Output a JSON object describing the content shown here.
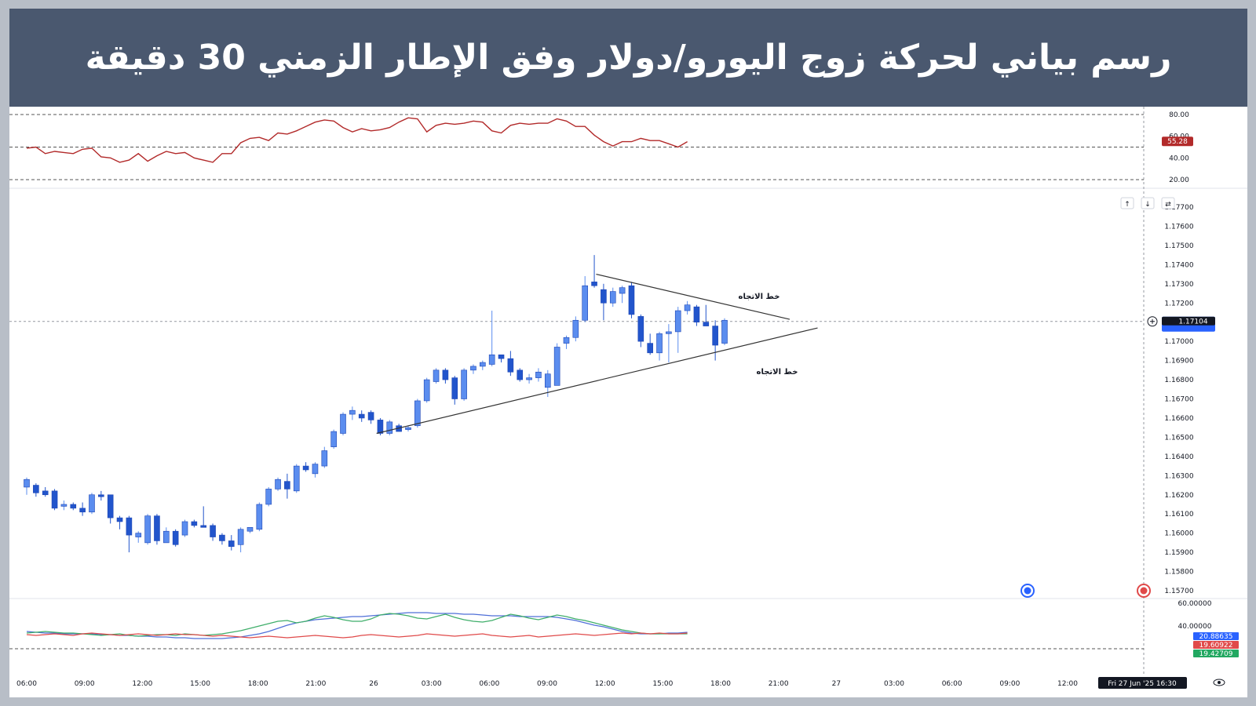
{
  "header": {
    "title": "رسم بياني لحركة زوج اليورو/دولار وفق الإطار الزمني 30 دقيقة"
  },
  "colors": {
    "banner": "#4a586f",
    "candle_up": "#5b8def",
    "candle_down": "#2255cc",
    "rsi": "#b22a2a",
    "adx": "#4f6fd8",
    "di_plus": "#3fae6a",
    "di_minus": "#e04a4a"
  },
  "chart_data": [
    {
      "type": "line",
      "name": "rsi-panel",
      "y_ticks": [
        "80.00",
        "60.00",
        "40.00",
        "20.00"
      ],
      "ylim": [
        20,
        80
      ],
      "levels": [
        80,
        50,
        20
      ],
      "last_value_label": "55.28",
      "values": [
        49,
        50,
        44,
        46,
        45,
        44,
        48,
        49,
        41,
        40,
        36,
        38,
        44,
        37,
        42,
        46,
        44,
        45,
        40,
        38,
        36,
        44,
        44,
        54,
        58,
        59,
        56,
        63,
        62,
        65,
        69,
        73,
        75,
        74,
        68,
        64,
        67,
        65,
        66,
        68,
        73,
        77,
        76,
        64,
        70,
        72,
        71,
        72,
        74,
        73,
        65,
        63,
        70,
        72,
        71,
        72,
        72,
        76,
        74,
        69,
        69,
        61,
        55,
        51,
        55,
        55,
        58,
        56,
        56,
        53,
        50,
        55
      ]
    },
    {
      "type": "candlestick",
      "name": "price-panel",
      "y_ticks": [
        "1.17700",
        "1.17600",
        "1.17500",
        "1.17400",
        "1.17300",
        "1.17200",
        "1.17000",
        "1.16900",
        "1.16800",
        "1.16700",
        "1.16600",
        "1.16500",
        "1.16400",
        "1.16300",
        "1.16200",
        "1.16100",
        "1.16000",
        "1.15900",
        "1.15800",
        "1.15700"
      ],
      "ylim": [
        1.1565,
        1.1775
      ],
      "current_price": 1.17104,
      "current_price_label": "1.17104",
      "x_ticks": [
        "06:00",
        "09:00",
        "12:00",
        "15:00",
        "18:00",
        "21:00",
        "26",
        "03:00",
        "06:00",
        "09:00",
        "12:00",
        "15:00",
        "18:00",
        "21:00",
        "27",
        "03:00",
        "06:00",
        "09:00",
        "12:00"
      ],
      "crosshair_time": "Fri 27 Jun '25   16:30",
      "candles": [
        {
          "o": 1.1624,
          "h": 1.1629,
          "l": 1.162,
          "c": 1.1628
        },
        {
          "o": 1.1625,
          "h": 1.1626,
          "l": 1.1619,
          "c": 1.1621
        },
        {
          "o": 1.1622,
          "h": 1.1624,
          "l": 1.1619,
          "c": 1.162
        },
        {
          "o": 1.1622,
          "h": 1.1623,
          "l": 1.1612,
          "c": 1.1613
        },
        {
          "o": 1.1614,
          "h": 1.1617,
          "l": 1.1612,
          "c": 1.1615
        },
        {
          "o": 1.1615,
          "h": 1.1616,
          "l": 1.1612,
          "c": 1.1613
        },
        {
          "o": 1.1613,
          "h": 1.1616,
          "l": 1.1609,
          "c": 1.1611
        },
        {
          "o": 1.1611,
          "h": 1.1621,
          "l": 1.161,
          "c": 1.162
        },
        {
          "o": 1.162,
          "h": 1.1622,
          "l": 1.1617,
          "c": 1.1619
        },
        {
          "o": 1.162,
          "h": 1.162,
          "l": 1.1605,
          "c": 1.1608
        },
        {
          "o": 1.1608,
          "h": 1.1609,
          "l": 1.1602,
          "c": 1.1606
        },
        {
          "o": 1.1608,
          "h": 1.1609,
          "l": 1.159,
          "c": 1.1599
        },
        {
          "o": 1.1598,
          "h": 1.1601,
          "l": 1.1595,
          "c": 1.16
        },
        {
          "o": 1.1595,
          "h": 1.161,
          "l": 1.1594,
          "c": 1.1609
        },
        {
          "o": 1.1609,
          "h": 1.161,
          "l": 1.1594,
          "c": 1.1596
        },
        {
          "o": 1.1595,
          "h": 1.1603,
          "l": 1.1595,
          "c": 1.1601
        },
        {
          "o": 1.1601,
          "h": 1.1602,
          "l": 1.1593,
          "c": 1.1594
        },
        {
          "o": 1.1599,
          "h": 1.1607,
          "l": 1.1598,
          "c": 1.1606
        },
        {
          "o": 1.1606,
          "h": 1.1607,
          "l": 1.1603,
          "c": 1.1604
        },
        {
          "o": 1.1604,
          "h": 1.1614,
          "l": 1.1603,
          "c": 1.1603
        },
        {
          "o": 1.1604,
          "h": 1.1605,
          "l": 1.1596,
          "c": 1.1598
        },
        {
          "o": 1.1599,
          "h": 1.16,
          "l": 1.1594,
          "c": 1.1596
        },
        {
          "o": 1.1596,
          "h": 1.1599,
          "l": 1.1591,
          "c": 1.1593
        },
        {
          "o": 1.1594,
          "h": 1.1603,
          "l": 1.159,
          "c": 1.1602
        },
        {
          "o": 1.1601,
          "h": 1.1603,
          "l": 1.16,
          "c": 1.1603
        },
        {
          "o": 1.1602,
          "h": 1.1616,
          "l": 1.1601,
          "c": 1.1615
        },
        {
          "o": 1.1615,
          "h": 1.1624,
          "l": 1.1614,
          "c": 1.1623
        },
        {
          "o": 1.1623,
          "h": 1.1629,
          "l": 1.1622,
          "c": 1.1628
        },
        {
          "o": 1.1627,
          "h": 1.1631,
          "l": 1.1618,
          "c": 1.1623
        },
        {
          "o": 1.1622,
          "h": 1.1636,
          "l": 1.1621,
          "c": 1.1635
        },
        {
          "o": 1.1635,
          "h": 1.1637,
          "l": 1.1632,
          "c": 1.1633
        },
        {
          "o": 1.1631,
          "h": 1.1637,
          "l": 1.1629,
          "c": 1.1636
        },
        {
          "o": 1.1635,
          "h": 1.1645,
          "l": 1.1634,
          "c": 1.1643
        },
        {
          "o": 1.1645,
          "h": 1.1654,
          "l": 1.1644,
          "c": 1.1653
        },
        {
          "o": 1.1652,
          "h": 1.1663,
          "l": 1.1651,
          "c": 1.1662
        },
        {
          "o": 1.1662,
          "h": 1.1666,
          "l": 1.1659,
          "c": 1.1664
        },
        {
          "o": 1.1662,
          "h": 1.1664,
          "l": 1.1658,
          "c": 1.166
        },
        {
          "o": 1.1663,
          "h": 1.1664,
          "l": 1.1657,
          "c": 1.1659
        },
        {
          "o": 1.1659,
          "h": 1.166,
          "l": 1.1651,
          "c": 1.1652
        },
        {
          "o": 1.1652,
          "h": 1.1659,
          "l": 1.1651,
          "c": 1.1658
        },
        {
          "o": 1.1656,
          "h": 1.1657,
          "l": 1.1653,
          "c": 1.1653
        },
        {
          "o": 1.1654,
          "h": 1.1656,
          "l": 1.1653,
          "c": 1.1655
        },
        {
          "o": 1.1656,
          "h": 1.167,
          "l": 1.1655,
          "c": 1.1669
        },
        {
          "o": 1.1669,
          "h": 1.1681,
          "l": 1.1668,
          "c": 1.168
        },
        {
          "o": 1.1679,
          "h": 1.1686,
          "l": 1.1678,
          "c": 1.1685
        },
        {
          "o": 1.1685,
          "h": 1.1686,
          "l": 1.1678,
          "c": 1.168
        },
        {
          "o": 1.1681,
          "h": 1.1682,
          "l": 1.1667,
          "c": 1.167
        },
        {
          "o": 1.167,
          "h": 1.1686,
          "l": 1.1669,
          "c": 1.1685
        },
        {
          "o": 1.1685,
          "h": 1.1688,
          "l": 1.1683,
          "c": 1.1687
        },
        {
          "o": 1.1687,
          "h": 1.169,
          "l": 1.1685,
          "c": 1.1689
        },
        {
          "o": 1.1688,
          "h": 1.1716,
          "l": 1.1687,
          "c": 1.1693
        },
        {
          "o": 1.1693,
          "h": 1.1693,
          "l": 1.1689,
          "c": 1.1691
        },
        {
          "o": 1.1691,
          "h": 1.1695,
          "l": 1.1682,
          "c": 1.1684
        },
        {
          "o": 1.1685,
          "h": 1.1686,
          "l": 1.1679,
          "c": 1.168
        },
        {
          "o": 1.168,
          "h": 1.1683,
          "l": 1.1678,
          "c": 1.1681
        },
        {
          "o": 1.1681,
          "h": 1.1686,
          "l": 1.1679,
          "c": 1.1684
        },
        {
          "o": 1.1676,
          "h": 1.1685,
          "l": 1.1671,
          "c": 1.1683
        },
        {
          "o": 1.1677,
          "h": 1.1699,
          "l": 1.1677,
          "c": 1.1697
        },
        {
          "o": 1.1699,
          "h": 1.1703,
          "l": 1.1696,
          "c": 1.1702
        },
        {
          "o": 1.1702,
          "h": 1.1713,
          "l": 1.17,
          "c": 1.1711
        },
        {
          "o": 1.1711,
          "h": 1.1734,
          "l": 1.171,
          "c": 1.1729
        },
        {
          "o": 1.1731,
          "h": 1.1745,
          "l": 1.1728,
          "c": 1.1729
        },
        {
          "o": 1.1727,
          "h": 1.173,
          "l": 1.1711,
          "c": 1.172
        },
        {
          "o": 1.172,
          "h": 1.1728,
          "l": 1.1718,
          "c": 1.1726
        },
        {
          "o": 1.1725,
          "h": 1.1729,
          "l": 1.172,
          "c": 1.1728
        },
        {
          "o": 1.1729,
          "h": 1.1731,
          "l": 1.1712,
          "c": 1.1714
        },
        {
          "o": 1.1713,
          "h": 1.1714,
          "l": 1.1697,
          "c": 1.17
        },
        {
          "o": 1.1699,
          "h": 1.1704,
          "l": 1.1693,
          "c": 1.1694
        },
        {
          "o": 1.1694,
          "h": 1.1705,
          "l": 1.169,
          "c": 1.1704
        },
        {
          "o": 1.1704,
          "h": 1.1709,
          "l": 1.1689,
          "c": 1.1705
        },
        {
          "o": 1.1705,
          "h": 1.1718,
          "l": 1.1694,
          "c": 1.1716
        },
        {
          "o": 1.1716,
          "h": 1.1721,
          "l": 1.1714,
          "c": 1.1719
        },
        {
          "o": 1.1718,
          "h": 1.1719,
          "l": 1.1708,
          "c": 1.171
        },
        {
          "o": 1.171,
          "h": 1.1719,
          "l": 1.1709,
          "c": 1.1708
        },
        {
          "o": 1.1708,
          "h": 1.1711,
          "l": 1.169,
          "c": 1.1698
        },
        {
          "o": 1.1699,
          "h": 1.1712,
          "l": 1.1698,
          "c": 1.1711
        }
      ],
      "trendlines": [
        {
          "label": "خط الاتجاه",
          "from": {
            "i": 37.6,
            "p": 1.1652
          },
          "to": {
            "i": 85,
            "p": 1.1707
          }
        },
        {
          "label": "خط الاتجاه",
          "from": {
            "i": 61.2,
            "p": 1.1735
          },
          "to": {
            "i": 82,
            "p": 1.17115
          }
        }
      ]
    },
    {
      "type": "line",
      "name": "dmi-panel",
      "y_ticks": [
        "60.00000",
        "40.00000"
      ],
      "ylim": [
        0,
        65
      ],
      "tags": [
        "20.88635",
        "19.60922",
        "19.42709"
      ],
      "series": [
        {
          "values": [
            22,
            21,
            20,
            20,
            19,
            19,
            19,
            19,
            18,
            18,
            17,
            17,
            16,
            16,
            15,
            15,
            14,
            14,
            13,
            13,
            13,
            13,
            14,
            15,
            17,
            19,
            22,
            26,
            30,
            33,
            35,
            37,
            38,
            39,
            40,
            41,
            41,
            42,
            43,
            44,
            45,
            46,
            46,
            46,
            45,
            45,
            45,
            44,
            44,
            43,
            42,
            42,
            42,
            41,
            41,
            41,
            41,
            40,
            38,
            36,
            33,
            30,
            28,
            25,
            22,
            20,
            19,
            19,
            19,
            20,
            20,
            21
          ]
        },
        {
          "values": [
            20,
            21,
            22,
            21,
            20,
            20,
            19,
            18,
            17,
            18,
            19,
            17,
            16,
            17,
            18,
            18,
            17,
            19,
            18,
            17,
            18,
            19,
            21,
            23,
            26,
            29,
            32,
            35,
            36,
            33,
            35,
            39,
            42,
            40,
            37,
            35,
            35,
            38,
            43,
            45,
            44,
            42,
            39,
            38,
            41,
            44,
            40,
            37,
            35,
            34,
            36,
            40,
            44,
            42,
            39,
            37,
            40,
            43,
            41,
            38,
            36,
            33,
            30,
            27,
            24,
            22,
            20,
            19,
            19,
            19,
            19,
            19
          ]
        },
        {
          "values": [
            18,
            17,
            18,
            19,
            18,
            17,
            19,
            20,
            19,
            18,
            17,
            18,
            19,
            18,
            17,
            18,
            19,
            18,
            18,
            17,
            16,
            17,
            16,
            15,
            14,
            15,
            16,
            15,
            14,
            15,
            16,
            17,
            16,
            15,
            14,
            15,
            17,
            18,
            17,
            16,
            15,
            16,
            17,
            19,
            18,
            17,
            16,
            17,
            18,
            19,
            17,
            16,
            15,
            16,
            17,
            15,
            16,
            17,
            18,
            19,
            18,
            17,
            18,
            19,
            20,
            19,
            20,
            19,
            20,
            19,
            19,
            20
          ]
        }
      ]
    }
  ],
  "annotations": {
    "trend_upper": "خط الاتجاه",
    "trend_lower": "خط الاتجاه"
  },
  "icons": [
    "arrow-up-icon",
    "arrow-down-icon",
    "swap-icon",
    "plus-icon",
    "event-flag-icon",
    "eye-icon"
  ]
}
